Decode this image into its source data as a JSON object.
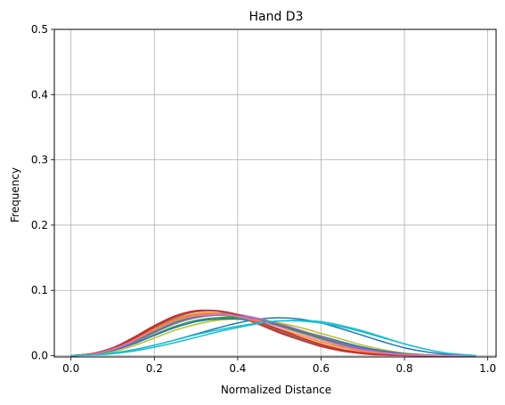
{
  "chart_data": {
    "type": "line",
    "title": "Hand D3",
    "xlabel": "Normalized Distance",
    "ylabel": "Frequency",
    "xlim": [
      -0.04,
      1.02
    ],
    "ylim": [
      -0.002,
      0.5
    ],
    "xticks": [
      0.0,
      0.2,
      0.4,
      0.6,
      0.8,
      1.0
    ],
    "xtick_labels": [
      "0.0",
      "0.2",
      "0.4",
      "0.6",
      "0.8",
      "1.0"
    ],
    "yticks": [
      0.0,
      0.1,
      0.2,
      0.3,
      0.4,
      0.5
    ],
    "ytick_labels": [
      "0.0",
      "0.1",
      "0.2",
      "0.3",
      "0.4",
      "0.5"
    ],
    "grid": true,
    "legend": false,
    "x": [
      0.0,
      0.05,
      0.1,
      0.15,
      0.2,
      0.25,
      0.3,
      0.35,
      0.4,
      0.45,
      0.5,
      0.55,
      0.6,
      0.65,
      0.7,
      0.75,
      0.8,
      0.85,
      0.9,
      0.95,
      0.97
    ],
    "series": [
      {
        "color": "#1f77b4",
        "values": [
          0.0,
          0.001,
          0.004,
          0.009,
          0.016,
          0.024,
          0.033,
          0.042,
          0.05,
          0.056,
          0.058,
          0.056,
          0.05,
          0.041,
          0.031,
          0.021,
          0.012,
          0.006,
          0.002,
          0.0005,
          0.0
        ]
      },
      {
        "color": "#ff7f0e",
        "values": [
          0.0,
          0.003,
          0.011,
          0.025,
          0.042,
          0.056,
          0.064,
          0.065,
          0.06,
          0.05,
          0.039,
          0.028,
          0.018,
          0.01,
          0.005,
          0.002,
          0.0008,
          0.0002,
          0.0,
          0.0,
          0.0
        ]
      },
      {
        "color": "#2ca02c",
        "values": [
          0.0,
          0.002,
          0.008,
          0.018,
          0.032,
          0.045,
          0.054,
          0.058,
          0.058,
          0.054,
          0.047,
          0.038,
          0.028,
          0.018,
          0.01,
          0.005,
          0.002,
          0.0006,
          0.0001,
          0.0,
          0.0
        ]
      },
      {
        "color": "#d62728",
        "values": [
          0.0,
          0.003,
          0.012,
          0.028,
          0.046,
          0.061,
          0.069,
          0.068,
          0.06,
          0.048,
          0.035,
          0.024,
          0.014,
          0.007,
          0.003,
          0.001,
          0.0003,
          0.0,
          0.0,
          0.0,
          0.0
        ]
      },
      {
        "color": "#9467bd",
        "values": [
          0.0,
          0.002,
          0.009,
          0.021,
          0.037,
          0.051,
          0.06,
          0.064,
          0.063,
          0.057,
          0.048,
          0.037,
          0.026,
          0.016,
          0.009,
          0.004,
          0.0015,
          0.0004,
          0.0001,
          0.0,
          0.0
        ]
      },
      {
        "color": "#8c564b",
        "values": [
          0.0,
          0.003,
          0.012,
          0.027,
          0.045,
          0.06,
          0.068,
          0.068,
          0.061,
          0.05,
          0.037,
          0.025,
          0.015,
          0.008,
          0.003,
          0.001,
          0.0003,
          0.0,
          0.0,
          0.0,
          0.0
        ]
      },
      {
        "color": "#e377c2",
        "values": [
          0.0,
          0.002,
          0.009,
          0.021,
          0.036,
          0.05,
          0.059,
          0.063,
          0.062,
          0.057,
          0.049,
          0.039,
          0.029,
          0.019,
          0.011,
          0.005,
          0.002,
          0.0006,
          0.0001,
          0.0,
          0.0
        ]
      },
      {
        "color": "#7f7f7f",
        "values": [
          0.0,
          0.003,
          0.011,
          0.025,
          0.043,
          0.058,
          0.067,
          0.068,
          0.062,
          0.051,
          0.039,
          0.027,
          0.017,
          0.009,
          0.004,
          0.0015,
          0.0004,
          0.0001,
          0.0,
          0.0,
          0.0
        ]
      },
      {
        "color": "#bcbd22",
        "values": [
          0.0,
          0.001,
          0.006,
          0.015,
          0.027,
          0.039,
          0.048,
          0.054,
          0.056,
          0.055,
          0.05,
          0.043,
          0.034,
          0.025,
          0.016,
          0.009,
          0.004,
          0.0015,
          0.0004,
          0.0001,
          0.0
        ]
      },
      {
        "color": "#17becf",
        "values": [
          0.0,
          0.001,
          0.003,
          0.007,
          0.013,
          0.02,
          0.028,
          0.036,
          0.043,
          0.049,
          0.053,
          0.054,
          0.052,
          0.046,
          0.038,
          0.028,
          0.018,
          0.01,
          0.004,
          0.001,
          0.0
        ]
      },
      {
        "color": "#1f77b4",
        "values": [
          0.0,
          0.002,
          0.008,
          0.018,
          0.031,
          0.043,
          0.052,
          0.056,
          0.056,
          0.052,
          0.046,
          0.038,
          0.03,
          0.021,
          0.013,
          0.007,
          0.003,
          0.001,
          0.0002,
          0.0,
          0.0
        ]
      },
      {
        "color": "#ff7f0e",
        "values": [
          0.0,
          0.002,
          0.01,
          0.024,
          0.041,
          0.055,
          0.063,
          0.064,
          0.059,
          0.051,
          0.041,
          0.031,
          0.021,
          0.013,
          0.007,
          0.003,
          0.001,
          0.0003,
          0.0,
          0.0,
          0.0
        ]
      },
      {
        "color": "#2ca02c",
        "values": [
          0.0,
          0.002,
          0.009,
          0.021,
          0.037,
          0.051,
          0.06,
          0.062,
          0.059,
          0.053,
          0.045,
          0.036,
          0.027,
          0.018,
          0.011,
          0.005,
          0.002,
          0.0006,
          0.0001,
          0.0,
          0.0
        ]
      },
      {
        "color": "#d62728",
        "values": [
          0.0,
          0.003,
          0.011,
          0.026,
          0.044,
          0.06,
          0.068,
          0.069,
          0.063,
          0.052,
          0.04,
          0.028,
          0.017,
          0.009,
          0.004,
          0.0015,
          0.0004,
          0.0001,
          0.0,
          0.0,
          0.0
        ]
      },
      {
        "color": "#9467bd",
        "values": [
          0.0,
          0.002,
          0.009,
          0.02,
          0.035,
          0.049,
          0.058,
          0.062,
          0.061,
          0.056,
          0.048,
          0.039,
          0.029,
          0.019,
          0.011,
          0.005,
          0.002,
          0.0006,
          0.0001,
          0.0,
          0.0
        ]
      },
      {
        "color": "#e377c2",
        "values": [
          0.0,
          0.002,
          0.01,
          0.023,
          0.039,
          0.053,
          0.061,
          0.063,
          0.06,
          0.053,
          0.044,
          0.034,
          0.024,
          0.015,
          0.008,
          0.004,
          0.0015,
          0.0004,
          0.0001,
          0.0,
          0.0
        ]
      },
      {
        "color": "#17becf",
        "values": [
          0.0,
          0.001,
          0.004,
          0.009,
          0.016,
          0.024,
          0.032,
          0.039,
          0.045,
          0.05,
          0.053,
          0.053,
          0.05,
          0.044,
          0.036,
          0.027,
          0.018,
          0.01,
          0.004,
          0.001,
          0.0
        ]
      }
    ]
  }
}
